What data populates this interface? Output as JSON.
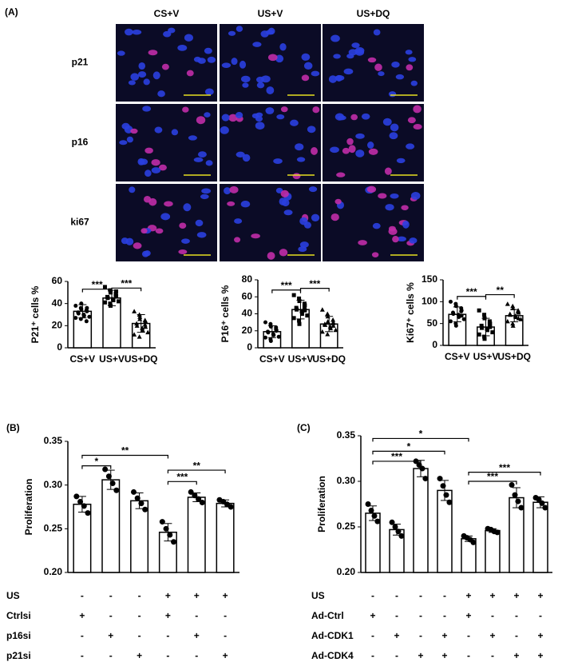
{
  "panel_labels": [
    "(A)",
    "(B)",
    "(C)"
  ],
  "image_grid": {
    "columns": [
      "CS+V",
      "US+V",
      "US+DQ"
    ],
    "rows": [
      "p21",
      "p16",
      "ki67"
    ]
  },
  "chart_data": [
    {
      "type": "bar",
      "ylabel": "P21⁺ cells %",
      "categories": [
        "CS+V",
        "US+V",
        "US+DQ"
      ],
      "values": [
        33,
        45,
        22
      ],
      "errors": [
        6,
        7,
        8
      ],
      "color": "#ffffff",
      "markers": [
        "circle",
        "square",
        "triangle"
      ],
      "points": [
        [
          38,
          36,
          35,
          34,
          33,
          32,
          31,
          30,
          29,
          28,
          27,
          26,
          40,
          24,
          36
        ],
        [
          55,
          52,
          50,
          48,
          47,
          46,
          45,
          44,
          43,
          42,
          41,
          40,
          38,
          49,
          51
        ],
        [
          33,
          30,
          28,
          25,
          24,
          22,
          20,
          18,
          16,
          14,
          12,
          10,
          26,
          21,
          19
        ]
      ],
      "ylim": [
        0,
        60
      ],
      "yticks": [
        0,
        20,
        40,
        60
      ],
      "brackets": [
        {
          "from": 0,
          "to": 1,
          "level": 53,
          "label": "***"
        },
        {
          "from": 1,
          "to": 2,
          "level": 54,
          "label": "***"
        }
      ]
    },
    {
      "type": "bar",
      "ylabel": "P16⁺ cells %",
      "categories": [
        "CS+V",
        "US+V",
        "US+DQ"
      ],
      "values": [
        19,
        45,
        28
      ],
      "errors": [
        7,
        11,
        9
      ],
      "color": "#ffffff",
      "markers": [
        "circle",
        "square",
        "triangle"
      ],
      "points": [
        [
          30,
          28,
          25,
          22,
          20,
          19,
          18,
          16,
          15,
          13,
          12,
          10,
          8,
          24,
          21
        ],
        [
          62,
          58,
          55,
          52,
          50,
          47,
          45,
          43,
          40,
          38,
          35,
          32,
          28,
          48,
          44
        ],
        [
          45,
          40,
          37,
          33,
          30,
          28,
          27,
          25,
          23,
          21,
          19,
          16,
          31,
          29,
          26
        ]
      ],
      "ylim": [
        0,
        80
      ],
      "yticks": [
        0,
        20,
        40,
        60,
        80
      ],
      "brackets": [
        {
          "from": 0,
          "to": 1,
          "level": 68,
          "label": "***"
        },
        {
          "from": 1,
          "to": 2,
          "level": 70,
          "label": "***"
        }
      ]
    },
    {
      "type": "bar",
      "ylabel": "Ki67⁺ cells %",
      "categories": [
        "CS+V",
        "US+V",
        "US+DQ"
      ],
      "values": [
        71,
        42,
        68
      ],
      "errors": [
        17,
        20,
        14
      ],
      "color": "#ffffff",
      "markers": [
        "circle",
        "square",
        "triangle"
      ],
      "points": [
        [
          100,
          95,
          90,
          85,
          80,
          75,
          72,
          70,
          65,
          60,
          55,
          50,
          45,
          78,
          68
        ],
        [
          80,
          70,
          62,
          55,
          50,
          45,
          40,
          38,
          35,
          30,
          25,
          20,
          15,
          48,
          42
        ],
        [
          95,
          90,
          85,
          80,
          75,
          72,
          70,
          68,
          65,
          60,
          55,
          50,
          45,
          78,
          62
        ]
      ],
      "ylim": [
        0,
        150
      ],
      "yticks": [
        0,
        50,
        100,
        150
      ],
      "brackets": [
        {
          "from": 0,
          "to": 1,
          "level": 112,
          "label": "***"
        },
        {
          "from": 1,
          "to": 2,
          "level": 116,
          "label": "**"
        }
      ]
    },
    {
      "type": "bar",
      "ylabel": "Proliferation",
      "values": [
        0.278,
        0.306,
        0.282,
        0.246,
        0.286,
        0.279
      ],
      "errors": [
        0.009,
        0.011,
        0.009,
        0.01,
        0.005,
        0.004
      ],
      "color": "#ffffff",
      "markers": [
        "circle"
      ],
      "points": [
        [
          0.287,
          0.281,
          0.276,
          0.268
        ],
        [
          0.318,
          0.31,
          0.302,
          0.294
        ],
        [
          0.292,
          0.285,
          0.279,
          0.272
        ],
        [
          0.258,
          0.25,
          0.243,
          0.235
        ],
        [
          0.292,
          0.288,
          0.284,
          0.28
        ],
        [
          0.283,
          0.281,
          0.278,
          0.275
        ]
      ],
      "ylim": [
        0.2,
        0.35
      ],
      "yticks": [
        {
          "value": 0.2,
          "label": "0.20"
        },
        {
          "value": 0.25,
          "label": "0.25"
        },
        {
          "value": 0.3,
          "label": "0.30"
        },
        {
          "value": 0.35,
          "label": "0.35"
        }
      ],
      "brackets": [
        {
          "from": 0,
          "to": 1,
          "level": 0.322,
          "label": "*"
        },
        {
          "from": 0,
          "to": 3,
          "level": 0.334,
          "label": "**"
        },
        {
          "from": 3,
          "to": 4,
          "level": 0.304,
          "label": "***"
        },
        {
          "from": 3,
          "to": 5,
          "level": 0.317,
          "label": "**"
        }
      ],
      "conditions": [
        {
          "label": "US",
          "signs": [
            "-",
            "-",
            "-",
            "+",
            "+",
            "+"
          ]
        },
        {
          "label": "Ctrlsi",
          "signs": [
            "+",
            "-",
            "-",
            "+",
            "-",
            "-"
          ]
        },
        {
          "label": "p16si",
          "signs": [
            "-",
            "+",
            "-",
            "-",
            "+",
            "-"
          ]
        },
        {
          "label": "p21si",
          "signs": [
            "-",
            "-",
            "+",
            "-",
            "-",
            "+"
          ]
        }
      ]
    },
    {
      "type": "bar",
      "ylabel": "Proliferation",
      "values": [
        0.265,
        0.247,
        0.314,
        0.29,
        0.237,
        0.246,
        0.282,
        0.277
      ],
      "errors": [
        0.008,
        0.006,
        0.009,
        0.011,
        0.003,
        0.002,
        0.011,
        0.006
      ],
      "color": "#ffffff",
      "markers": [
        "circle"
      ],
      "points": [
        [
          0.275,
          0.268,
          0.262,
          0.256
        ],
        [
          0.255,
          0.25,
          0.245,
          0.24
        ],
        [
          0.322,
          0.318,
          0.314,
          0.303
        ],
        [
          0.303,
          0.295,
          0.285,
          0.277
        ],
        [
          0.24,
          0.238,
          0.236,
          0.233
        ],
        [
          0.248,
          0.247,
          0.245,
          0.244
        ],
        [
          0.296,
          0.285,
          0.278,
          0.271
        ],
        [
          0.282,
          0.28,
          0.276,
          0.271
        ]
      ],
      "ylim": [
        0.2,
        0.35
      ],
      "yticks": [
        {
          "value": 0.2,
          "label": "0.20"
        },
        {
          "value": 0.25,
          "label": "0.25"
        },
        {
          "value": 0.3,
          "label": "0.30"
        },
        {
          "value": 0.35,
          "label": "0.35"
        }
      ],
      "brackets": [
        {
          "from": 0,
          "to": 4,
          "level": 0.347,
          "label": "*"
        },
        {
          "from": 0,
          "to": 3,
          "level": 0.333,
          "label": "*"
        },
        {
          "from": 0,
          "to": 2,
          "level": 0.322,
          "label": "***"
        },
        {
          "from": 4,
          "to": 7,
          "level": 0.31,
          "label": "***"
        },
        {
          "from": 4,
          "to": 6,
          "level": 0.3,
          "label": "***"
        }
      ],
      "conditions": [
        {
          "label": "US",
          "signs": [
            "-",
            "-",
            "-",
            "-",
            "+",
            "+",
            "+",
            "+"
          ]
        },
        {
          "label": "Ad-Ctrl",
          "signs": [
            "+",
            "-",
            "-",
            "-",
            "+",
            "-",
            "-",
            "-"
          ]
        },
        {
          "label": "Ad-CDK1",
          "signs": [
            "-",
            "+",
            "-",
            "+",
            "-",
            "+",
            "-",
            "+"
          ]
        },
        {
          "label": "Ad-CDK4",
          "signs": [
            "-",
            "-",
            "+",
            "+",
            "-",
            "-",
            "+",
            "+"
          ]
        }
      ]
    }
  ]
}
